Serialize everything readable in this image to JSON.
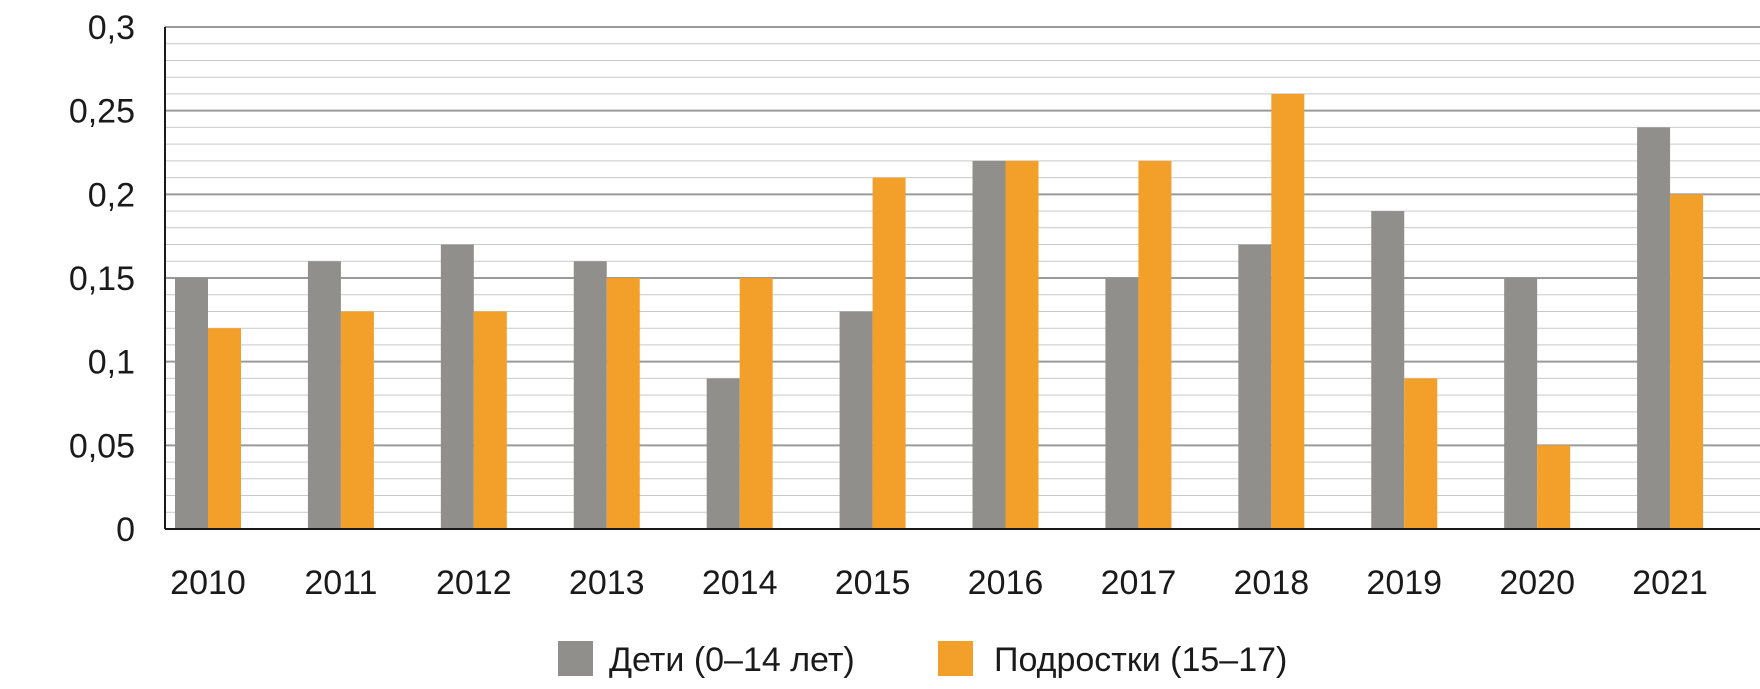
{
  "chart_data": {
    "type": "bar",
    "title": "",
    "xlabel": "",
    "ylabel": "",
    "categories": [
      "2010",
      "2011",
      "2012",
      "2013",
      "2014",
      "2015",
      "2016",
      "2017",
      "2018",
      "2019",
      "2020",
      "2021"
    ],
    "series": [
      {
        "name": "Дети (0–14 лет)",
        "color": "#918f8c",
        "values": [
          0.15,
          0.16,
          0.17,
          0.16,
          0.09,
          0.13,
          0.22,
          0.15,
          0.17,
          0.19,
          0.15,
          0.24
        ]
      },
      {
        "name": "Подростки (15–17)",
        "color": "#f2a02a",
        "values": [
          0.12,
          0.13,
          0.13,
          0.15,
          0.15,
          0.21,
          0.22,
          0.22,
          0.26,
          0.09,
          0.05,
          0.2
        ]
      }
    ],
    "ylim": [
      0,
      0.3
    ],
    "y_ticks": [
      0,
      0.05,
      0.1,
      0.15,
      0.2,
      0.25,
      0.3
    ],
    "y_tick_labels": [
      "0",
      "0,05",
      "0,1",
      "0,15",
      "0,2",
      "0,25",
      "0,3"
    ],
    "y_minor_step": 0.01,
    "grid": true,
    "legend_position": "bottom-center"
  }
}
